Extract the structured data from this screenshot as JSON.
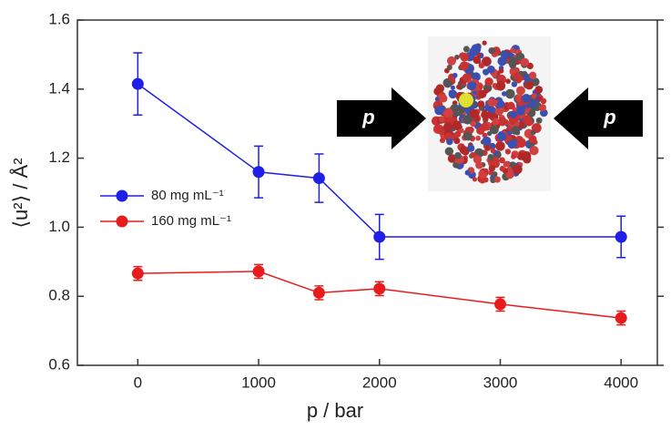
{
  "chart_data": {
    "type": "line",
    "x_label": "p / bar",
    "y_label": "⟨u²⟩ / Å²",
    "xlim": [
      -500,
      4300
    ],
    "xticks": [
      0,
      1000,
      2000,
      3000,
      4000
    ],
    "ylim": [
      0.6,
      1.6
    ],
    "yticks": [
      0.6,
      0.8,
      {
        "value": 1,
        "label": "1.0"
      },
      1.2,
      1.4,
      1.6
    ],
    "legend": "center-left",
    "series": [
      {
        "name": "80 mg mL⁻¹",
        "color": "#1f1fe8",
        "x": [
          0,
          1000,
          1500,
          2000,
          4000
        ],
        "values": [
          1.415,
          1.16,
          1.142,
          0.972,
          0.972
        ],
        "errors": [
          0.09,
          0.075,
          0.07,
          0.065,
          0.06
        ]
      },
      {
        "name": "160 mg mL⁻¹",
        "color": "#e81c1c",
        "x": [
          0,
          1000,
          1500,
          2000,
          3000,
          4000
        ],
        "values": [
          0.866,
          0.872,
          0.81,
          0.822,
          0.777,
          0.737
        ],
        "errors": [
          0.02,
          0.02,
          0.02,
          0.02,
          0.02,
          0.02
        ]
      }
    ],
    "inset": {
      "left_label": "p",
      "right_label": "p"
    }
  }
}
